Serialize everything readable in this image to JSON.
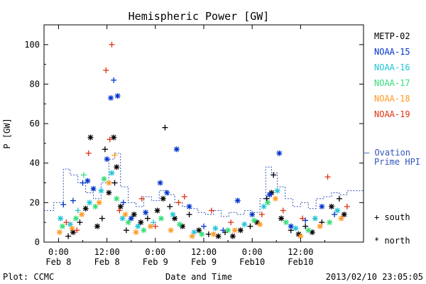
{
  "chart_data": {
    "type": "scatter",
    "title": "Hemispheric Power [GW]",
    "ylabel": "P [GW]",
    "xlabel": "Date and Time",
    "ylim": [
      0,
      110
    ],
    "xlim": [
      -0.15,
      3.15
    ],
    "grid": false,
    "yticks": [
      0,
      20,
      40,
      60,
      80,
      100
    ],
    "xticks": [
      {
        "x": 0.0,
        "line1": "0:00",
        "line2": "Feb 8"
      },
      {
        "x": 0.5,
        "line1": "12:00",
        "line2": "Feb 8"
      },
      {
        "x": 1.0,
        "line1": "0:00",
        "line2": "Feb 9"
      },
      {
        "x": 1.5,
        "line1": "12:00",
        "line2": "Feb 9"
      },
      {
        "x": 2.0,
        "line1": "0:00",
        "line2": "Feb10"
      },
      {
        "x": 2.5,
        "line1": "12:00",
        "line2": "Feb10"
      }
    ],
    "x_units": "days since Feb 8 0:00",
    "legend_placement": "right",
    "series": [
      {
        "name": "METP-02",
        "color": "#000000",
        "points": [
          {
            "x": 0.33,
            "y": 53,
            "m": "*"
          },
          {
            "x": 0.48,
            "y": 47,
            "m": "+"
          },
          {
            "x": 0.52,
            "y": 25,
            "m": "*"
          },
          {
            "x": 0.57,
            "y": 53,
            "m": "*"
          },
          {
            "x": 0.6,
            "y": 38,
            "m": "*"
          },
          {
            "x": 0.58,
            "y": 30,
            "m": "+"
          },
          {
            "x": 0.1,
            "y": 3,
            "m": "+"
          },
          {
            "x": 0.15,
            "y": 5,
            "m": "*"
          },
          {
            "x": 0.22,
            "y": 10,
            "m": "+"
          },
          {
            "x": 0.28,
            "y": 17,
            "m": "*"
          },
          {
            "x": 0.4,
            "y": 8,
            "m": "*"
          },
          {
            "x": 0.45,
            "y": 12,
            "m": "+"
          },
          {
            "x": 0.64,
            "y": 18,
            "m": "*"
          },
          {
            "x": 0.7,
            "y": 6,
            "m": "+"
          },
          {
            "x": 0.78,
            "y": 14,
            "m": "*"
          },
          {
            "x": 0.85,
            "y": 10,
            "m": "*"
          },
          {
            "x": 0.92,
            "y": 12,
            "m": "+"
          },
          {
            "x": 1.02,
            "y": 16,
            "m": "*"
          },
          {
            "x": 1.08,
            "y": 22,
            "m": "*"
          },
          {
            "x": 1.1,
            "y": 58,
            "m": "+"
          },
          {
            "x": 1.15,
            "y": 18,
            "m": "+"
          },
          {
            "x": 1.2,
            "y": 12,
            "m": "*"
          },
          {
            "x": 1.28,
            "y": 8,
            "m": "*"
          },
          {
            "x": 1.35,
            "y": 14,
            "m": "+"
          },
          {
            "x": 1.45,
            "y": 6,
            "m": "*"
          },
          {
            "x": 1.55,
            "y": 4,
            "m": "+"
          },
          {
            "x": 1.65,
            "y": 3,
            "m": "*"
          },
          {
            "x": 1.72,
            "y": 5,
            "m": "+"
          },
          {
            "x": 1.8,
            "y": 3,
            "m": "*"
          },
          {
            "x": 1.88,
            "y": 6,
            "m": "*"
          },
          {
            "x": 1.98,
            "y": 8,
            "m": "+"
          },
          {
            "x": 2.05,
            "y": 10,
            "m": "*"
          },
          {
            "x": 2.15,
            "y": 22,
            "m": "+"
          },
          {
            "x": 2.22,
            "y": 34,
            "m": "+"
          },
          {
            "x": 2.2,
            "y": 25,
            "m": "*"
          },
          {
            "x": 2.3,
            "y": 12,
            "m": "*"
          },
          {
            "x": 2.4,
            "y": 6,
            "m": "+"
          },
          {
            "x": 2.48,
            "y": 4,
            "m": "*"
          },
          {
            "x": 2.55,
            "y": 8,
            "m": "+"
          },
          {
            "x": 2.62,
            "y": 5,
            "m": "*"
          },
          {
            "x": 2.72,
            "y": 10,
            "m": "+"
          },
          {
            "x": 2.82,
            "y": 18,
            "m": "*"
          },
          {
            "x": 2.9,
            "y": 22,
            "m": "+"
          },
          {
            "x": 2.95,
            "y": 14,
            "m": "*"
          }
        ]
      },
      {
        "name": "NOAA-15",
        "color": "#0033cc",
        "points": [
          {
            "x": 0.05,
            "y": 19,
            "m": "+"
          },
          {
            "x": 0.15,
            "y": 21,
            "m": "+"
          },
          {
            "x": 0.25,
            "y": 30,
            "m": "+"
          },
          {
            "x": 0.3,
            "y": 31,
            "m": "*"
          },
          {
            "x": 0.36,
            "y": 27,
            "m": "*"
          },
          {
            "x": 0.5,
            "y": 42,
            "m": "*"
          },
          {
            "x": 0.54,
            "y": 73,
            "m": "*"
          },
          {
            "x": 0.57,
            "y": 82,
            "m": "+"
          },
          {
            "x": 0.61,
            "y": 74,
            "m": "*"
          },
          {
            "x": 0.67,
            "y": 20,
            "m": "+"
          },
          {
            "x": 0.75,
            "y": 12,
            "m": "*"
          },
          {
            "x": 0.9,
            "y": 15,
            "m": "*"
          },
          {
            "x": 1.05,
            "y": 30,
            "m": "*"
          },
          {
            "x": 1.12,
            "y": 25,
            "m": "*"
          },
          {
            "x": 1.22,
            "y": 47,
            "m": "*"
          },
          {
            "x": 1.35,
            "y": 18,
            "m": "*"
          },
          {
            "x": 1.5,
            "y": 8,
            "m": "+"
          },
          {
            "x": 1.7,
            "y": 6,
            "m": "+"
          },
          {
            "x": 1.85,
            "y": 21,
            "m": "*"
          },
          {
            "x": 2.0,
            "y": 14,
            "m": "*"
          },
          {
            "x": 2.18,
            "y": 24,
            "m": "*"
          },
          {
            "x": 2.28,
            "y": 45,
            "m": "*"
          },
          {
            "x": 2.4,
            "y": 8,
            "m": "*"
          },
          {
            "x": 2.55,
            "y": 11,
            "m": "+"
          },
          {
            "x": 2.72,
            "y": 18,
            "m": "*"
          },
          {
            "x": 2.85,
            "y": 14,
            "m": "+"
          }
        ]
      },
      {
        "name": "NOAA-16",
        "color": "#22c4d8",
        "points": [
          {
            "x": 0.02,
            "y": 12,
            "m": "*"
          },
          {
            "x": 0.12,
            "y": 9,
            "m": "*"
          },
          {
            "x": 0.2,
            "y": 16,
            "m": "+"
          },
          {
            "x": 0.32,
            "y": 20,
            "m": "*"
          },
          {
            "x": 0.44,
            "y": 26,
            "m": "*"
          },
          {
            "x": 0.55,
            "y": 35,
            "m": "*"
          },
          {
            "x": 0.66,
            "y": 12,
            "m": "*"
          },
          {
            "x": 0.82,
            "y": 8,
            "m": "*"
          },
          {
            "x": 0.98,
            "y": 10,
            "m": "+"
          },
          {
            "x": 1.18,
            "y": 14,
            "m": "*"
          },
          {
            "x": 1.4,
            "y": 5,
            "m": "*"
          },
          {
            "x": 1.62,
            "y": 7,
            "m": "*"
          },
          {
            "x": 1.92,
            "y": 9,
            "m": "*"
          },
          {
            "x": 2.12,
            "y": 18,
            "m": "*"
          },
          {
            "x": 2.26,
            "y": 26,
            "m": "*"
          },
          {
            "x": 2.45,
            "y": 7,
            "m": "*"
          },
          {
            "x": 2.65,
            "y": 12,
            "m": "*"
          },
          {
            "x": 2.88,
            "y": 16,
            "m": "*"
          }
        ]
      },
      {
        "name": "NOAA-17",
        "color": "#33dd77",
        "points": [
          {
            "x": 0.04,
            "y": 8,
            "m": "*"
          },
          {
            "x": 0.18,
            "y": 12,
            "m": "*"
          },
          {
            "x": 0.26,
            "y": 34,
            "m": "+"
          },
          {
            "x": 0.38,
            "y": 18,
            "m": "*"
          },
          {
            "x": 0.47,
            "y": 32,
            "m": "*"
          },
          {
            "x": 0.6,
            "y": 22,
            "m": "*"
          },
          {
            "x": 0.72,
            "y": 10,
            "m": "*"
          },
          {
            "x": 0.88,
            "y": 6,
            "m": "*"
          },
          {
            "x": 1.06,
            "y": 12,
            "m": "*"
          },
          {
            "x": 1.25,
            "y": 9,
            "m": "*"
          },
          {
            "x": 1.48,
            "y": 4,
            "m": "*"
          },
          {
            "x": 1.75,
            "y": 6,
            "m": "*"
          },
          {
            "x": 2.02,
            "y": 11,
            "m": "*"
          },
          {
            "x": 2.16,
            "y": 20,
            "m": "*"
          },
          {
            "x": 2.35,
            "y": 10,
            "m": "*"
          },
          {
            "x": 2.58,
            "y": 6,
            "m": "*"
          },
          {
            "x": 2.8,
            "y": 10,
            "m": "*"
          }
        ]
      },
      {
        "name": "NOAA-18",
        "color": "#ff9922",
        "points": [
          {
            "x": 0.01,
            "y": 5,
            "m": "*"
          },
          {
            "x": 0.14,
            "y": 7,
            "m": "*"
          },
          {
            "x": 0.24,
            "y": 14,
            "m": "*"
          },
          {
            "x": 0.42,
            "y": 20,
            "m": "*"
          },
          {
            "x": 0.52,
            "y": 30,
            "m": "*"
          },
          {
            "x": 0.58,
            "y": 44,
            "m": "+"
          },
          {
            "x": 0.69,
            "y": 14,
            "m": "*"
          },
          {
            "x": 0.8,
            "y": 5,
            "m": "*"
          },
          {
            "x": 0.95,
            "y": 8,
            "m": "*"
          },
          {
            "x": 1.16,
            "y": 6,
            "m": "*"
          },
          {
            "x": 1.38,
            "y": 3,
            "m": "*"
          },
          {
            "x": 1.6,
            "y": 4,
            "m": "*"
          },
          {
            "x": 1.82,
            "y": 6,
            "m": "*"
          },
          {
            "x": 2.08,
            "y": 9,
            "m": "*"
          },
          {
            "x": 2.24,
            "y": 22,
            "m": "*"
          },
          {
            "x": 2.5,
            "y": 3,
            "m": "*"
          },
          {
            "x": 2.7,
            "y": 8,
            "m": "*"
          },
          {
            "x": 2.92,
            "y": 12,
            "m": "*"
          }
        ]
      },
      {
        "name": "NOAA-19",
        "color": "#dd3311",
        "points": [
          {
            "x": 0.08,
            "y": 10,
            "m": "+"
          },
          {
            "x": 0.19,
            "y": 6,
            "m": "+"
          },
          {
            "x": 0.31,
            "y": 45,
            "m": "+"
          },
          {
            "x": 0.49,
            "y": 87,
            "m": "+"
          },
          {
            "x": 0.53,
            "y": 52,
            "m": "+"
          },
          {
            "x": 0.55,
            "y": 100,
            "m": "+"
          },
          {
            "x": 0.63,
            "y": 16,
            "m": "+"
          },
          {
            "x": 0.86,
            "y": 22,
            "m": "+"
          },
          {
            "x": 1.0,
            "y": 8,
            "m": "+"
          },
          {
            "x": 1.24,
            "y": 20,
            "m": "+"
          },
          {
            "x": 1.3,
            "y": 23,
            "m": "+"
          },
          {
            "x": 1.58,
            "y": 16,
            "m": "+"
          },
          {
            "x": 1.78,
            "y": 10,
            "m": "+"
          },
          {
            "x": 2.1,
            "y": 14,
            "m": "+"
          },
          {
            "x": 2.32,
            "y": 16,
            "m": "+"
          },
          {
            "x": 2.52,
            "y": 12,
            "m": "+"
          },
          {
            "x": 2.78,
            "y": 33,
            "m": "+"
          },
          {
            "x": 2.98,
            "y": 18,
            "m": "+"
          }
        ]
      }
    ],
    "ovation": {
      "name": "— Ovation Prime HPI",
      "color": "#3355bb",
      "steps": [
        {
          "x": -0.15,
          "y": 16
        },
        {
          "x": -0.05,
          "y": 20
        },
        {
          "x": 0.05,
          "y": 37
        },
        {
          "x": 0.12,
          "y": 34
        },
        {
          "x": 0.2,
          "y": 30
        },
        {
          "x": 0.28,
          "y": 25
        },
        {
          "x": 0.36,
          "y": 22
        },
        {
          "x": 0.44,
          "y": 30
        },
        {
          "x": 0.52,
          "y": 42
        },
        {
          "x": 0.58,
          "y": 45
        },
        {
          "x": 0.64,
          "y": 28
        },
        {
          "x": 0.72,
          "y": 20
        },
        {
          "x": 0.8,
          "y": 18
        },
        {
          "x": 0.88,
          "y": 23
        },
        {
          "x": 0.96,
          "y": 21
        },
        {
          "x": 1.04,
          "y": 26
        },
        {
          "x": 1.12,
          "y": 24
        },
        {
          "x": 1.2,
          "y": 20
        },
        {
          "x": 1.28,
          "y": 18
        },
        {
          "x": 1.36,
          "y": 17
        },
        {
          "x": 1.44,
          "y": 15
        },
        {
          "x": 1.52,
          "y": 14
        },
        {
          "x": 1.6,
          "y": 16
        },
        {
          "x": 1.68,
          "y": 13
        },
        {
          "x": 1.76,
          "y": 15
        },
        {
          "x": 1.84,
          "y": 14
        },
        {
          "x": 1.92,
          "y": 16
        },
        {
          "x": 2.0,
          "y": 15
        },
        {
          "x": 2.08,
          "y": 22
        },
        {
          "x": 2.14,
          "y": 38
        },
        {
          "x": 2.2,
          "y": 35
        },
        {
          "x": 2.26,
          "y": 28
        },
        {
          "x": 2.34,
          "y": 22
        },
        {
          "x": 2.42,
          "y": 18
        },
        {
          "x": 2.5,
          "y": 20
        },
        {
          "x": 2.58,
          "y": 17
        },
        {
          "x": 2.66,
          "y": 22
        },
        {
          "x": 2.74,
          "y": 23
        },
        {
          "x": 2.82,
          "y": 25
        },
        {
          "x": 2.9,
          "y": 24
        },
        {
          "x": 2.98,
          "y": 26
        },
        {
          "x": 3.15,
          "y": 26
        }
      ]
    },
    "legend_labels": [
      "METP-02",
      "NOAA-15",
      "NOAA-16",
      "NOAA-17",
      "NOAA-18",
      "NOAA-19"
    ],
    "marker_legend": {
      "south": "+ south",
      "north": "* north"
    },
    "footer": {
      "left": "Plot: CCMC",
      "right": "2013/02/10 23:05:05"
    }
  }
}
